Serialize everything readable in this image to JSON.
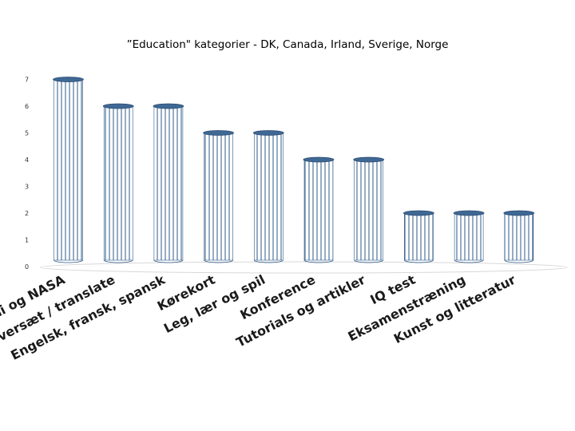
{
  "chart_data": {
    "type": "bar",
    "title": "”Education\" kategorier - DK, Canada, Irland, Sverige, Norge",
    "xlabel": "",
    "ylabel": "",
    "ylim": [
      0,
      7
    ],
    "yticks": [
      0,
      1,
      2,
      3,
      4,
      5,
      6,
      7
    ],
    "categories": [
      "Økonomi og NASA",
      "Oversæt / translate",
      "Engelsk, fransk, spansk",
      "Kørekort",
      "Leg, lær og spil",
      "Konference",
      "Tutorials og artikler",
      "IQ test",
      "Eksamenstræning",
      "Kunst og litteratur"
    ],
    "values": [
      7,
      6,
      6,
      5,
      5,
      4,
      4,
      2,
      2,
      2
    ],
    "grid": false,
    "legend": "none",
    "colors": {
      "bar_fill": "#ffffff",
      "bar_line": "#2e5a8a",
      "bar_top": "#3f6894"
    }
  }
}
